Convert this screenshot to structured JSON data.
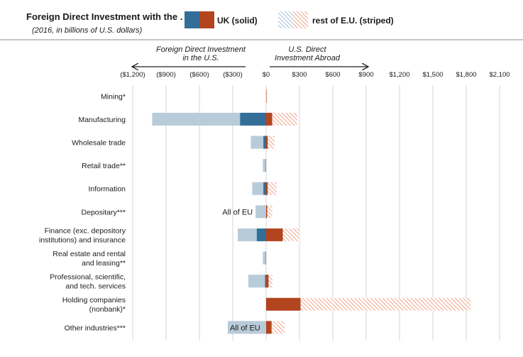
{
  "header": {
    "title": "Foreign Direct Investment with the . . .",
    "subtitle": "(2016, in billions of U.S. dollars)",
    "legend_uk": "UK (solid)",
    "legend_eu": "rest of E.U. (striped)"
  },
  "colors": {
    "uk_inward": "#336e99",
    "eu_inward": "#b8cbd9",
    "uk_outward": "#b2441e",
    "eu_outward": "#e88f6c",
    "grid": "#d6d6d6"
  },
  "chart_data": {
    "type": "bar",
    "orientation": "horizontal",
    "stacked": true,
    "direction_left": "Foreign Direct Investment in the U.S.",
    "direction_right": "U.S. Direct Investment Abroad",
    "xlim": [
      -1200,
      2100
    ],
    "xticks": [
      -1200,
      -900,
      -600,
      -300,
      0,
      300,
      600,
      900,
      1200,
      1500,
      1800,
      2100
    ],
    "xtick_labels": [
      "($1,200)",
      "($900)",
      "($600)",
      "($300)",
      "$0",
      "$300",
      "$600",
      "$900",
      "$1,200",
      "$1,500",
      "$1,800",
      "$2,100"
    ],
    "grid": true,
    "categories": [
      "Mining*",
      "Manufacturing",
      "Wholesale trade",
      "Retail trade**",
      "Information",
      "Depositary***",
      "Finance (exc. depository institutions) and insurance",
      "Real estate and rental and leasing**",
      "Professional, scientific, and tech. services",
      "Holding companies (nonbank)*",
      "Other industries***"
    ],
    "category_lines": [
      [
        "Mining*"
      ],
      [
        "Manufacturing"
      ],
      [
        "Wholesale trade"
      ],
      [
        "Retail trade**"
      ],
      [
        "Information"
      ],
      [
        "Depositary***"
      ],
      [
        "Finance (exc. depository",
        "institutions) and insurance"
      ],
      [
        "Real estate and rental",
        "and leasing**"
      ],
      [
        "Professional, scientific,",
        "and tech. services"
      ],
      [
        "Holding companies",
        "(nonbank)*"
      ],
      [
        "Other industries***"
      ]
    ],
    "series": [
      {
        "name": "UK (solid)",
        "side": "inward",
        "values": [
          0,
          -235,
          -25,
          -4,
          -25,
          0,
          -85,
          -4,
          -10,
          0,
          0
        ]
      },
      {
        "name": "rest of E.U. (striped)",
        "side": "inward",
        "values": [
          0,
          -790,
          -112,
          -25,
          -100,
          -95,
          -170,
          -25,
          -150,
          0,
          -345
        ]
      },
      {
        "name": "UK (solid)",
        "side": "outward",
        "values": [
          4,
          55,
          15,
          0,
          15,
          10,
          150,
          0,
          22,
          310,
          50
        ]
      },
      {
        "name": "rest of E.U. (striped)",
        "side": "outward",
        "values": [
          6,
          225,
          60,
          0,
          80,
          45,
          150,
          0,
          35,
          1530,
          115
        ]
      }
    ],
    "annotations": [
      {
        "text": "All of EU",
        "category": "Depositary***"
      },
      {
        "text": "All of EU",
        "category": "Other industries***"
      }
    ]
  }
}
